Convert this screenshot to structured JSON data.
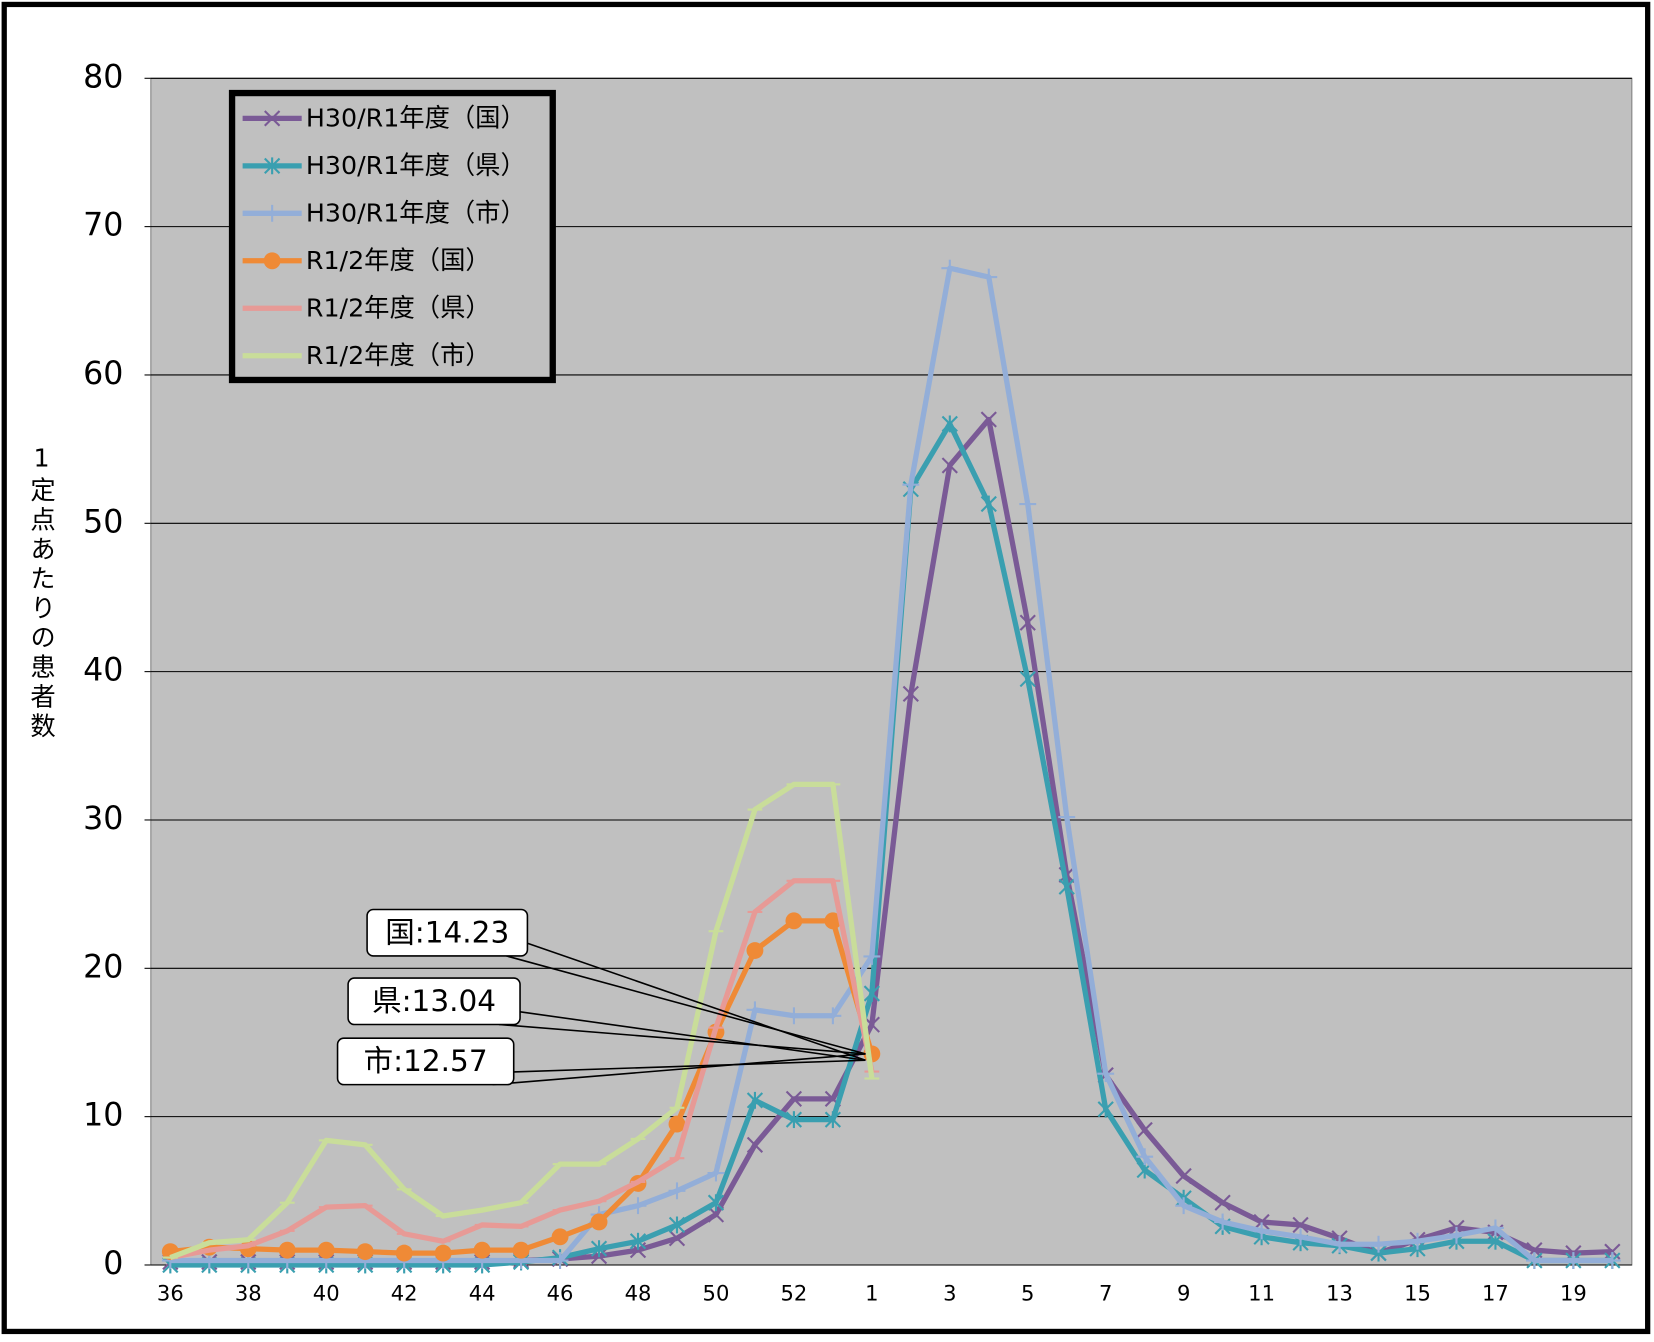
{
  "chart_data": {
    "type": "line",
    "y_label": "1定点あたりの患者数",
    "categories": [
      "36",
      null,
      "38",
      null,
      "40",
      null,
      "42",
      null,
      "44",
      null,
      "46",
      null,
      "48",
      null,
      "50",
      null,
      "52",
      null,
      "1",
      null,
      "3",
      null,
      "5",
      null,
      "7",
      null,
      "9",
      null,
      "11",
      null,
      "13",
      null,
      "15",
      null,
      "17",
      null,
      "19",
      null
    ],
    "ylim": [
      0,
      80
    ],
    "yticks": [
      0,
      10,
      20,
      30,
      40,
      50,
      60,
      70,
      80
    ],
    "grid": true,
    "legend": "upper left",
    "series": [
      {
        "name": "H30/R1年度（国）",
        "color": "#7a5a96",
        "marker": "x",
        "values": [
          0.2,
          0.2,
          0.2,
          0.2,
          0.2,
          0.2,
          0.2,
          0.2,
          0.2,
          0.3,
          0.4,
          0.6,
          1.0,
          1.8,
          3.4,
          8.1,
          11.2,
          11.2,
          16.2,
          38.5,
          53.9,
          57.0,
          43.3,
          26.3,
          12.8,
          9.1,
          6.0,
          4.2,
          2.9,
          2.7,
          1.8,
          0.8,
          1.7,
          2.5,
          2.2,
          1.0,
          0.8,
          0.9
        ]
      },
      {
        "name": "H30/R1年度（県）",
        "color": "#3a9fb0",
        "marker": "asterisk",
        "values": [
          0,
          0,
          0,
          0,
          0,
          0,
          0,
          0,
          0,
          0.2,
          0.5,
          1.1,
          1.6,
          2.7,
          4.2,
          11.1,
          9.8,
          9.8,
          18.3,
          52.3,
          56.7,
          51.3,
          39.5,
          25.5,
          10.5,
          6.4,
          4.5,
          2.6,
          1.9,
          1.5,
          1.3,
          0.8,
          1.1,
          1.6,
          1.6,
          0.3,
          0.3,
          0.3
        ]
      },
      {
        "name": "H30/R1年度（市）",
        "color": "#93aed8",
        "marker": "plus",
        "values": [
          0.3,
          0.3,
          0.3,
          0.3,
          0.3,
          0.3,
          0.3,
          0.3,
          0.3,
          0.3,
          0.3,
          3.4,
          4.0,
          5.0,
          6.2,
          17.2,
          16.8,
          16.8,
          20.8,
          52.6,
          67.2,
          66.6,
          51.3,
          30.2,
          12.9,
          7.3,
          4.0,
          2.9,
          2.3,
          1.9,
          1.4,
          1.4,
          1.6,
          2.0,
          2.5,
          0.3,
          0.3,
          0.3
        ]
      },
      {
        "name": "R1/2年度（国）",
        "color": "#ef8a36",
        "marker": "circle",
        "values": [
          0.9,
          1.2,
          1.1,
          1.0,
          1.0,
          0.9,
          0.8,
          0.8,
          1.0,
          1.0,
          1.9,
          2.9,
          5.5,
          9.5,
          15.7,
          21.2,
          23.2,
          23.2,
          14.23,
          null,
          null,
          null,
          null,
          null,
          null,
          null,
          null,
          null,
          null,
          null,
          null,
          null,
          null,
          null,
          null,
          null,
          null,
          null
        ]
      },
      {
        "name": "R1/2年度（県）",
        "color": "#e79a96",
        "marker": "dash",
        "values": [
          0.5,
          1.0,
          1.3,
          2.3,
          3.9,
          4.0,
          2.1,
          1.6,
          2.7,
          2.6,
          3.7,
          4.3,
          5.6,
          7.2,
          16.0,
          23.8,
          25.9,
          25.9,
          13.04,
          null,
          null,
          null,
          null,
          null,
          null,
          null,
          null,
          null,
          null,
          null,
          null,
          null,
          null,
          null,
          null,
          null,
          null,
          null
        ]
      },
      {
        "name": "R1/2年度（市）",
        "color": "#c9dd9a",
        "marker": "dash",
        "values": [
          0.5,
          1.5,
          1.7,
          4.2,
          8.4,
          8.1,
          5.1,
          3.3,
          3.7,
          4.2,
          6.8,
          6.8,
          8.5,
          10.6,
          22.5,
          30.7,
          32.4,
          32.4,
          12.57,
          null,
          null,
          null,
          null,
          null,
          null,
          null,
          null,
          null,
          null,
          null,
          null,
          null,
          null,
          null,
          null,
          null,
          null,
          null
        ]
      }
    ],
    "annotations": [
      "国:14.23",
      "県:13.04",
      "市:12.57"
    ]
  }
}
